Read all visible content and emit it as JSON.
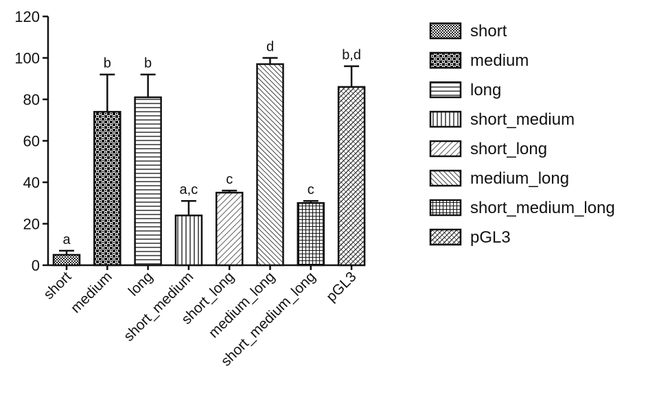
{
  "chart_data": {
    "type": "bar",
    "categories": [
      "short",
      "medium",
      "long",
      "short_medium",
      "short_long",
      "medium_long",
      "short_medium_long",
      "pGL3"
    ],
    "values": [
      5,
      74,
      81,
      24,
      35,
      97,
      30,
      86
    ],
    "errors": [
      2,
      18,
      11,
      7,
      1,
      3,
      1,
      10
    ],
    "significance_labels": [
      "a",
      "b",
      "b",
      "a,c",
      "c",
      "d",
      "c",
      "b,d"
    ],
    "yticks": [
      0,
      20,
      40,
      60,
      80,
      100,
      120
    ],
    "ylim": [
      0,
      120
    ],
    "title": "",
    "xlabel": "",
    "ylabel": "",
    "legend": {
      "placement": "right",
      "entries": [
        "short",
        "medium",
        "long",
        "short_medium",
        "short_long",
        "medium_long",
        "short_medium_long",
        "pGL3"
      ]
    },
    "patterns": [
      "dense-dots",
      "checker",
      "horizontal-lines",
      "vertical-lines",
      "diagonal-right",
      "diagonal-left",
      "grid",
      "cross-hatch"
    ],
    "colors": {
      "ink": "#111111",
      "background": "#ffffff"
    }
  }
}
